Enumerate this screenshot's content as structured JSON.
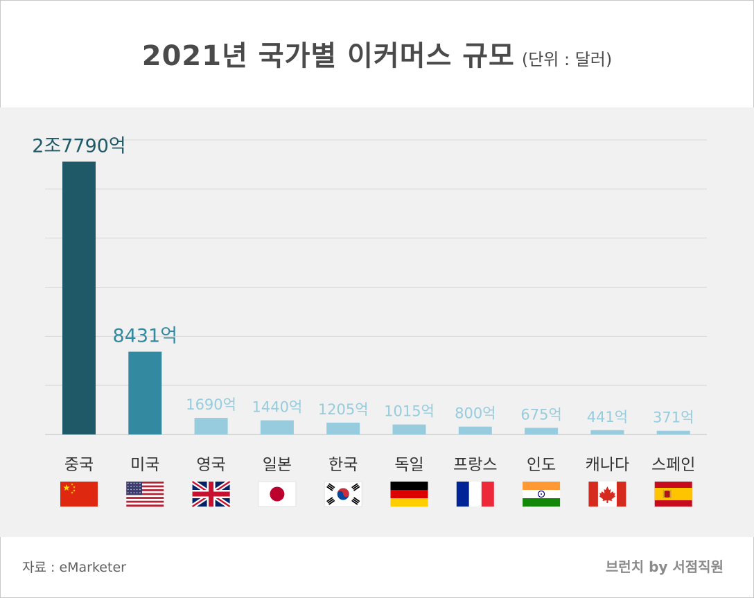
{
  "title": "2021년 국가별 이커머스 규모",
  "unit_label": "(단위 : 달러)",
  "source": "자료 : eMarketer",
  "brand": "브런치 by 서점직원",
  "colors": {
    "bar_first": "#1f5866",
    "bar_second": "#338aa0",
    "bar_rest": "#96ccdd",
    "label_first": "#1f5866",
    "label_second": "#338aa0",
    "label_rest": "#96ccdd",
    "category_text": "#333333",
    "grid": "#d6d6d6"
  },
  "chart_data": {
    "type": "bar",
    "title": "2021년 국가별 이커머스 규모",
    "unit": "(단위 : 달러)",
    "xlabel": "",
    "ylabel": "",
    "grid": true,
    "ylim": [
      0,
      30000
    ],
    "categories": [
      "중국",
      "미국",
      "영국",
      "일본",
      "한국",
      "독일",
      "프랑스",
      "인도",
      "캐나다",
      "스페인"
    ],
    "values": [
      27790,
      8431,
      1690,
      1440,
      1205,
      1015,
      800,
      675,
      441,
      371
    ],
    "data_labels": [
      "2조7790억",
      "8431억",
      "1690억",
      "1440억",
      "1205억",
      "1015억",
      "800억",
      "675억",
      "441억",
      "371억"
    ],
    "flags": [
      "china-flag",
      "usa-flag",
      "uk-flag",
      "japan-flag",
      "korea-flag",
      "germany-flag",
      "france-flag",
      "india-flag",
      "canada-flag",
      "spain-flag"
    ]
  }
}
